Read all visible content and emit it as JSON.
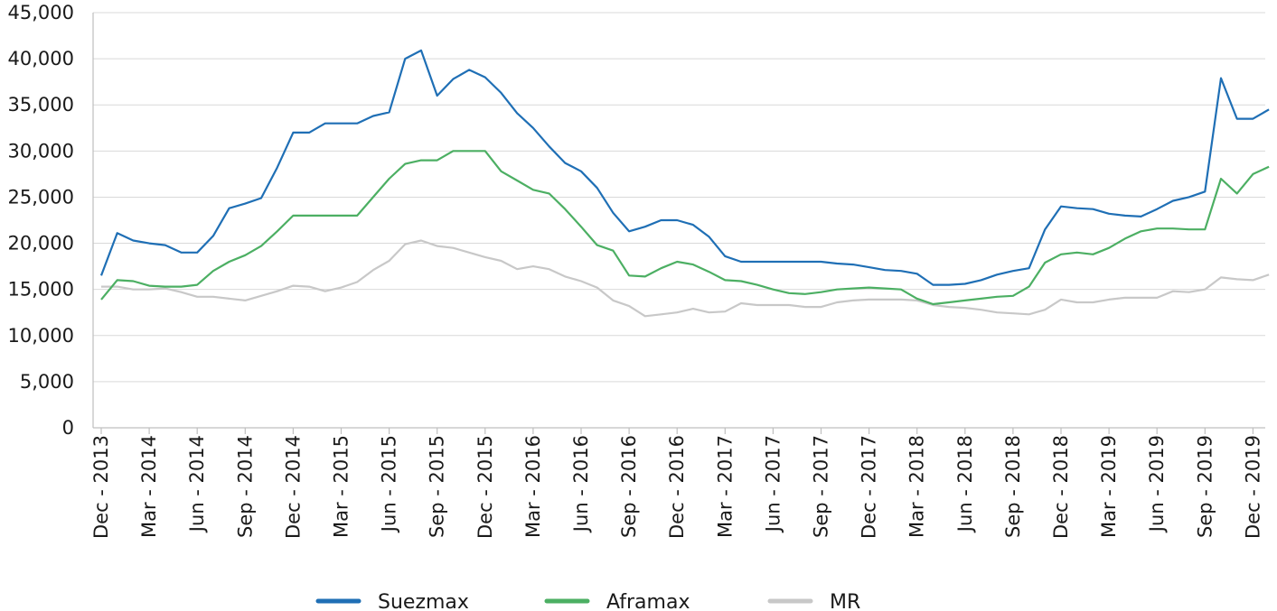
{
  "chart_data": {
    "type": "line",
    "title": "",
    "xlabel": "",
    "ylabel": "",
    "ylim": [
      0,
      45000
    ],
    "yticks": [
      0,
      5000,
      10000,
      15000,
      20000,
      25000,
      30000,
      35000,
      40000,
      45000
    ],
    "ytick_labels": [
      "0",
      "5,000",
      "10,000",
      "15,000",
      "20,000",
      "25,000",
      "30,000",
      "35,000",
      "40,000",
      "45,000"
    ],
    "xtick_labels": [
      "Dec - 2013",
      "Mar - 2014",
      "Jun - 2014",
      "Sep - 2014",
      "Dec - 2014",
      "Mar - 2015",
      "Jun - 2015",
      "Sep - 2015",
      "Dec - 2015",
      "Mar - 2016",
      "Jun - 2016",
      "Sep - 2016",
      "Dec - 2016",
      "Mar - 2017",
      "Jun - 2017",
      "Sep - 2017",
      "Dec - 2017",
      "Mar - 2018",
      "Jun - 2018",
      "Sep - 2018",
      "Dec - 2018",
      "Mar - 2019",
      "Jun - 2019",
      "Sep - 2019",
      "Dec - 2019"
    ],
    "x_start": "Dec - 2013",
    "x_end": "Jan - 2020",
    "grid": true,
    "legend_position": "bottom",
    "series": [
      {
        "name": "Suezmax",
        "color": "#1f6fb5",
        "values": [
          16500,
          21100,
          20300,
          20000,
          19800,
          19000,
          19000,
          20800,
          23800,
          24300,
          24900,
          28200,
          32000,
          32000,
          33000,
          33000,
          33000,
          33800,
          34200,
          40000,
          40900,
          36000,
          37800,
          38800,
          38000,
          36300,
          34100,
          32500,
          30500,
          28700,
          27800,
          26000,
          23300,
          21300,
          21800,
          22500,
          22500,
          22000,
          20700,
          18600,
          18000,
          18000,
          18000,
          18000,
          18000,
          18000,
          17800,
          17700,
          17400,
          17100,
          17000,
          16700,
          15500,
          15500,
          15600,
          16000,
          16600,
          17000,
          17300,
          21500,
          24000,
          23800,
          23700,
          23200,
          23000,
          22900,
          23700,
          24600,
          25000,
          25600,
          37900,
          33500,
          33500,
          34500
        ]
      },
      {
        "name": "Aframax",
        "color": "#4caf63",
        "values": [
          13900,
          16000,
          15900,
          15400,
          15300,
          15300,
          15500,
          17000,
          18000,
          18700,
          19700,
          21300,
          23000,
          23000,
          23000,
          23000,
          23000,
          25000,
          27000,
          28600,
          29000,
          29000,
          30000,
          30000,
          30000,
          27800,
          26800,
          25800,
          25400,
          23700,
          21800,
          19800,
          19200,
          16500,
          16400,
          17300,
          18000,
          17700,
          16900,
          16000,
          15900,
          15500,
          15000,
          14600,
          14500,
          14700,
          15000,
          15100,
          15200,
          15100,
          15000,
          14000,
          13400,
          13600,
          13800,
          14000,
          14200,
          14300,
          15300,
          17900,
          18800,
          19000,
          18800,
          19500,
          20500,
          21300,
          21600,
          21600,
          21500,
          21500,
          27000,
          25400,
          27500,
          28300
        ]
      },
      {
        "name": "MR",
        "color": "#c8c8c8",
        "values": [
          15300,
          15300,
          15000,
          15000,
          15100,
          14700,
          14200,
          14200,
          14000,
          13800,
          14300,
          14800,
          15400,
          15300,
          14800,
          15200,
          15800,
          17100,
          18100,
          19900,
          20300,
          19700,
          19500,
          19000,
          18500,
          18100,
          17200,
          17500,
          17200,
          16400,
          15900,
          15200,
          13800,
          13200,
          12100,
          12300,
          12500,
          12900,
          12500,
          12600,
          13500,
          13300,
          13300,
          13300,
          13100,
          13100,
          13600,
          13800,
          13900,
          13900,
          13900,
          13800,
          13300,
          13100,
          13000,
          12800,
          12500,
          12400,
          12300,
          12800,
          13900,
          13600,
          13600,
          13900,
          14100,
          14100,
          14100,
          14800,
          14700,
          15000,
          16300,
          16100,
          16000,
          16600
        ]
      }
    ]
  }
}
